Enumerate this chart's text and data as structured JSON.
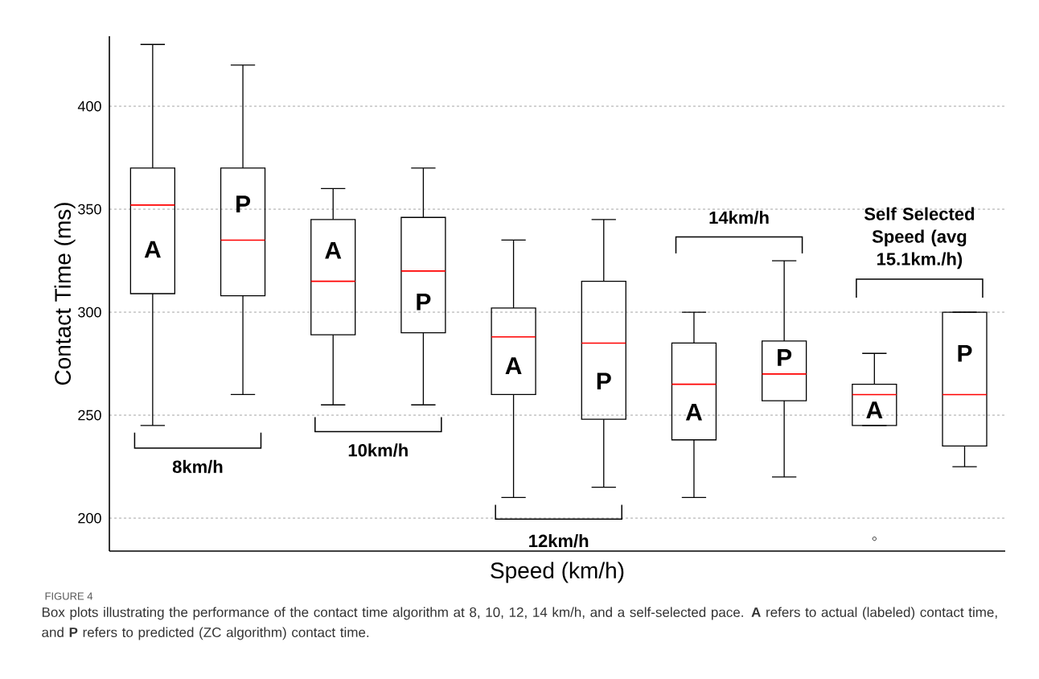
{
  "chart_data": {
    "type": "box",
    "xlabel": "Speed (km/h)",
    "ylabel": "Contact Time (ms)",
    "categories": [
      "A",
      "P",
      "A",
      "P",
      "A",
      "P",
      "A",
      "P",
      "A",
      "P"
    ],
    "series": [
      {
        "color": "#000000",
        "boxes": [
          {
            "low": 245,
            "q1": 309,
            "median": 352,
            "q3": 370,
            "high": 430
          },
          {
            "low": 260,
            "q1": 308,
            "median": 335,
            "q3": 370,
            "high": 420
          },
          {
            "low": 255,
            "q1": 289,
            "median": 315,
            "q3": 345,
            "high": 360
          },
          {
            "low": 255,
            "q1": 290,
            "median": 320,
            "q3": 346,
            "high": 370
          },
          {
            "low": 210,
            "q1": 260,
            "median": 288,
            "q3": 302,
            "high": 335
          },
          {
            "low": 215,
            "q1": 248,
            "median": 285,
            "q3": 315,
            "high": 345
          },
          {
            "low": 210,
            "q1": 238,
            "median": 265,
            "q3": 285,
            "high": 300
          },
          {
            "low": 220,
            "q1": 257,
            "median": 270,
            "q3": 286,
            "high": 325
          },
          {
            "low": 245,
            "q1": 245,
            "median": 260,
            "q3": 265,
            "high": 280,
            "outliers": [
              190
            ]
          },
          {
            "low": 225,
            "q1": 235,
            "median": 260,
            "q3": 300,
            "high": 300
          }
        ]
      }
    ],
    "ylim": [
      184,
      434
    ],
    "yticks": [
      200,
      250,
      300,
      350,
      400
    ],
    "grid": "y",
    "annotations": [
      "8km/h",
      "10km/h",
      "12km/h",
      "14km/h",
      "Self Selected Speed (avg 15.1km./h)",
      "FIGURE 4",
      "Box plots illustrating the performance of the contact time algorithm at 8, 10, 12, 14 km/h, and a self-selected pace. **A** refers to actual (labeled) contact time, and **P** refers to predicted (ZC algorithm) contact time."
    ]
  }
}
